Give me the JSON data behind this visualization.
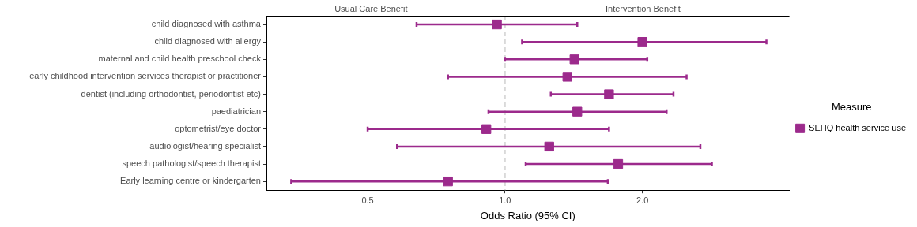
{
  "chart_data": {
    "type": "scatter",
    "xlabel": "Odds Ratio (95% CI)",
    "legend_title": "Measure",
    "categories": [
      "child diagnosed with asthma",
      "child diagnosed with allergy",
      "maternal and child health preschool check",
      "early childhood intervention services therapist or practitioner",
      "dentist (including orthodontist, periodontist etc)",
      "paediatrician",
      "optometrist/eye doctor",
      "audiologist/hearing specialist",
      "speech pathologist/speech therapist",
      "Early learning centre or kindergarten"
    ],
    "series": [
      {
        "name": "SEHQ health service use",
        "color": "#9c2a8c",
        "values": [
          0.96,
          2.0,
          1.42,
          1.37,
          1.69,
          1.44,
          0.91,
          1.25,
          1.77,
          0.75
        ],
        "errors": [
          [
            0.64,
            1.44
          ],
          [
            1.09,
            3.74
          ],
          [
            1.0,
            2.05
          ],
          [
            0.75,
            2.5
          ],
          [
            1.26,
            2.34
          ],
          [
            0.92,
            2.26
          ],
          [
            0.5,
            1.69
          ],
          [
            0.58,
            2.68
          ],
          [
            1.11,
            2.84
          ],
          [
            0.34,
            1.68
          ]
        ]
      }
    ],
    "log": "x",
    "xlim": [
      0.3,
      4.2
    ],
    "xticks": [
      {
        "value": 0.5,
        "label": "0.5"
      },
      {
        "value": 1,
        "label": "1.0"
      },
      {
        "value": 2,
        "label": "2.0"
      }
    ],
    "annotations": [
      "Usual Care Benefit",
      "Intervention Benefit"
    ],
    "ref_lines": [
      {
        "axis": "x",
        "value": 1,
        "color": "#d9d9d9",
        "line_style": "dashed"
      }
    ],
    "orientation": "horizontal",
    "marker": "square",
    "grid": false,
    "legend": "right"
  }
}
